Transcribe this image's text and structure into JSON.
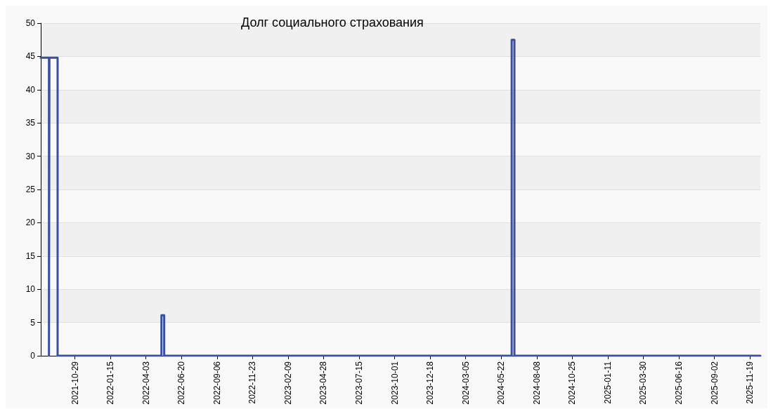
{
  "chart_data": {
    "type": "line",
    "title": "Долг социального страхования",
    "x": [
      "2021-08-15",
      "2021-09-02",
      "2021-09-02",
      "2021-09-03",
      "2021-09-03",
      "2021-09-21",
      "2021-09-21",
      "2022-05-07",
      "2022-05-07",
      "2022-05-13",
      "2022-05-13",
      "2024-06-14",
      "2024-06-14",
      "2024-06-20",
      "2024-06-20",
      "2025-12-12"
    ],
    "series": [
      {
        "color": "#3a4fa0",
        "values": [
          44.8,
          44.8,
          0,
          0,
          44.8,
          44.8,
          0,
          0,
          6.1,
          6.1,
          0,
          0,
          47.5,
          47.5,
          0,
          0
        ]
      }
    ],
    "xlim": [
      "2021-08-15",
      "2025-12-12"
    ],
    "xticks": [
      "2021-10-29",
      "2022-01-15",
      "2022-04-03",
      "2022-06-20",
      "2022-09-06",
      "2022-11-23",
      "2023-02-09",
      "2023-04-28",
      "2023-07-15",
      "2023-10-01",
      "2023-12-18",
      "2024-03-05",
      "2024-05-22",
      "2024-08-08",
      "2024-10-25",
      "2025-01-11",
      "2025-03-30",
      "2025-06-16",
      "2025-09-02",
      "2025-11-19"
    ],
    "ylim": [
      0,
      50
    ],
    "yticks": [
      0,
      5,
      10,
      15,
      20,
      25,
      30,
      35,
      40,
      45,
      50
    ],
    "grid": "y",
    "marker": "none",
    "line_style": "solid"
  }
}
